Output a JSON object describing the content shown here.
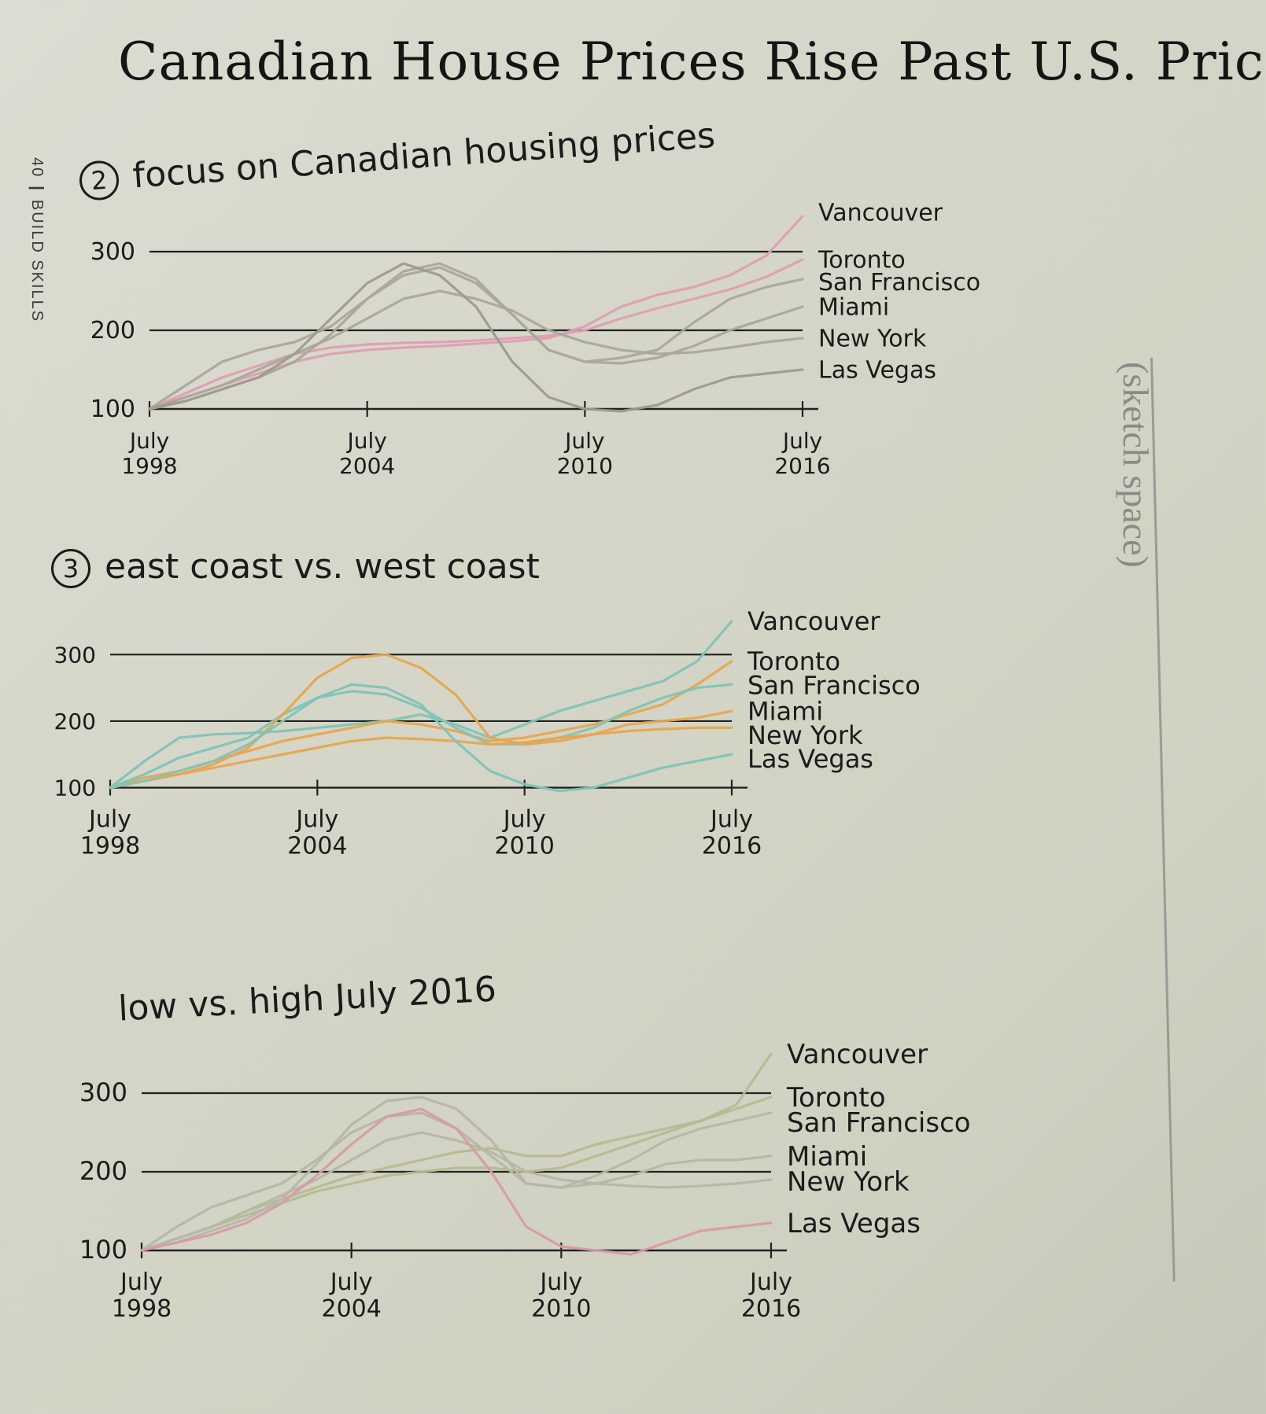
{
  "page": {
    "title": "Canadian House Prices Rise Past U.S. Prices",
    "margin_note_num": "40",
    "margin_note_text": "BUILD SKILLS",
    "sketch_label": "(sketch space)"
  },
  "sections": [
    {
      "number": "2",
      "heading": "focus on Canadian housing prices"
    },
    {
      "number": "3",
      "heading": "east coast vs. west coast"
    },
    {
      "number": "",
      "heading": "low vs. high July 2016"
    }
  ],
  "chart_data": [
    {
      "type": "line",
      "title": "focus on Canadian housing prices",
      "x_ticks": [
        "July 1998",
        "July 2004",
        "July 2010",
        "July 2016"
      ],
      "x": [
        "1998-07",
        "1999-07",
        "2000-07",
        "2001-07",
        "2002-07",
        "2003-07",
        "2004-07",
        "2005-07",
        "2006-07",
        "2007-07",
        "2008-07",
        "2009-07",
        "2010-07",
        "2011-07",
        "2012-07",
        "2013-07",
        "2014-07",
        "2015-07",
        "2016-07"
      ],
      "y_ticks": [
        100,
        200,
        300
      ],
      "ylim": [
        90,
        350
      ],
      "gridlines": [
        200,
        300
      ],
      "series": [
        {
          "name": "Vancouver",
          "color": "#de9fb3",
          "values": [
            100,
            115,
            130,
            145,
            160,
            170,
            175,
            178,
            180,
            183,
            186,
            190,
            205,
            230,
            245,
            255,
            270,
            295,
            345
          ]
        },
        {
          "name": "Toronto",
          "color": "#de9fb3",
          "values": [
            100,
            120,
            140,
            155,
            170,
            178,
            182,
            184,
            185,
            187,
            190,
            193,
            200,
            215,
            228,
            240,
            252,
            268,
            290
          ]
        },
        {
          "name": "San Francisco",
          "color": "#a9a89a",
          "values": [
            100,
            130,
            160,
            175,
            185,
            205,
            240,
            270,
            280,
            260,
            220,
            175,
            160,
            165,
            175,
            210,
            240,
            255,
            265
          ]
        },
        {
          "name": "Miami",
          "color": "#a9a89a",
          "values": [
            100,
            110,
            125,
            140,
            160,
            195,
            240,
            275,
            285,
            265,
            220,
            175,
            160,
            158,
            165,
            180,
            200,
            215,
            230
          ]
        },
        {
          "name": "New York",
          "color": "#a9a89a",
          "values": [
            100,
            115,
            130,
            150,
            170,
            190,
            215,
            240,
            250,
            240,
            225,
            200,
            185,
            175,
            170,
            172,
            178,
            185,
            190
          ]
        },
        {
          "name": "Las Vegas",
          "color": "#9c9b8c",
          "values": [
            100,
            110,
            125,
            140,
            170,
            215,
            260,
            285,
            270,
            230,
            160,
            115,
            100,
            97,
            105,
            125,
            140,
            145,
            150
          ]
        }
      ]
    },
    {
      "type": "line",
      "title": "east coast vs. west coast",
      "x_ticks": [
        "July 1998",
        "July 2004",
        "July 2010",
        "July 2016"
      ],
      "x": [
        "1998-07",
        "1999-07",
        "2000-07",
        "2001-07",
        "2002-07",
        "2003-07",
        "2004-07",
        "2005-07",
        "2006-07",
        "2007-07",
        "2008-07",
        "2009-07",
        "2010-07",
        "2011-07",
        "2012-07",
        "2013-07",
        "2014-07",
        "2015-07",
        "2016-07"
      ],
      "y_ticks": [
        100,
        200,
        300
      ],
      "ylim": [
        90,
        350
      ],
      "gridlines": [
        200,
        300
      ],
      "series": [
        {
          "name": "Vancouver",
          "color": "#7fc3b9",
          "values": [
            100,
            140,
            175,
            180,
            182,
            185,
            190,
            195,
            200,
            210,
            195,
            175,
            195,
            215,
            230,
            245,
            260,
            290,
            350
          ]
        },
        {
          "name": "Toronto",
          "color": "#e8a54f",
          "values": [
            100,
            115,
            125,
            140,
            155,
            170,
            180,
            190,
            200,
            195,
            185,
            170,
            175,
            185,
            195,
            210,
            225,
            255,
            290
          ]
        },
        {
          "name": "San Francisco",
          "color": "#7fc3b9",
          "values": [
            100,
            120,
            145,
            160,
            175,
            210,
            235,
            245,
            240,
            220,
            190,
            165,
            165,
            175,
            190,
            215,
            235,
            250,
            255
          ]
        },
        {
          "name": "Miami",
          "color": "#e8a54f",
          "values": [
            100,
            110,
            120,
            135,
            160,
            210,
            265,
            295,
            300,
            280,
            240,
            175,
            165,
            170,
            180,
            195,
            200,
            205,
            215
          ]
        },
        {
          "name": "New York",
          "color": "#e8a54f",
          "values": [
            100,
            110,
            120,
            130,
            140,
            150,
            160,
            170,
            175,
            173,
            170,
            165,
            168,
            175,
            180,
            185,
            188,
            190,
            190
          ]
        },
        {
          "name": "Las Vegas",
          "color": "#7fc3b9",
          "values": [
            100,
            110,
            125,
            140,
            165,
            200,
            235,
            255,
            250,
            225,
            170,
            125,
            105,
            95,
            100,
            115,
            130,
            140,
            150
          ]
        }
      ]
    },
    {
      "type": "line",
      "title": "low vs. high July 2016",
      "x_ticks": [
        "July 1998",
        "July 2004",
        "July 2010",
        "July 2016"
      ],
      "x": [
        "1998-07",
        "1999-07",
        "2000-07",
        "2001-07",
        "2002-07",
        "2003-07",
        "2004-07",
        "2005-07",
        "2006-07",
        "2007-07",
        "2008-07",
        "2009-07",
        "2010-07",
        "2011-07",
        "2012-07",
        "2013-07",
        "2014-07",
        "2015-07",
        "2016-07"
      ],
      "y_ticks": [
        100,
        200,
        300
      ],
      "ylim": [
        90,
        350
      ],
      "gridlines": [
        200,
        300
      ],
      "series": [
        {
          "name": "Vancouver",
          "color": "#b7b990",
          "values": [
            100,
            115,
            130,
            150,
            165,
            180,
            195,
            205,
            215,
            225,
            230,
            220,
            220,
            235,
            245,
            255,
            265,
            285,
            350
          ]
        },
        {
          "name": "Toronto",
          "color": "#b7b990",
          "values": [
            100,
            115,
            130,
            145,
            160,
            175,
            185,
            195,
            200,
            205,
            205,
            200,
            205,
            220,
            235,
            250,
            265,
            280,
            295
          ]
        },
        {
          "name": "San Francisco",
          "color": "#b7b6a6",
          "values": [
            100,
            130,
            155,
            170,
            185,
            215,
            250,
            270,
            275,
            255,
            220,
            185,
            180,
            195,
            215,
            240,
            255,
            265,
            275
          ]
        },
        {
          "name": "Miami",
          "color": "#b7b6a6",
          "values": [
            100,
            110,
            125,
            140,
            165,
            210,
            260,
            290,
            295,
            280,
            240,
            185,
            180,
            185,
            195,
            210,
            215,
            215,
            220
          ]
        },
        {
          "name": "New York",
          "color": "#b7b6a6",
          "values": [
            100,
            115,
            130,
            150,
            170,
            190,
            215,
            240,
            250,
            240,
            225,
            200,
            190,
            185,
            182,
            180,
            182,
            185,
            190
          ]
        },
        {
          "name": "Las Vegas",
          "color": "#d79aa8",
          "values": [
            100,
            110,
            120,
            135,
            160,
            195,
            235,
            270,
            280,
            255,
            200,
            130,
            105,
            100,
            95,
            110,
            125,
            130,
            135
          ]
        }
      ]
    }
  ]
}
